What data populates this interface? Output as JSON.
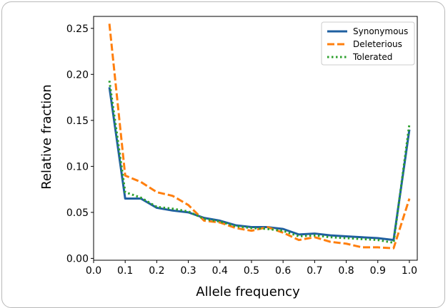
{
  "chart_data": {
    "type": "line",
    "title": "",
    "xlabel": "Allele frequency",
    "ylabel": "Relative fraction",
    "xlim": [
      0.0,
      1.025
    ],
    "ylim": [
      -0.002,
      0.263
    ],
    "xticks": [
      "0.0",
      "0.1",
      "0.2",
      "0.3",
      "0.4",
      "0.5",
      "0.6",
      "0.7",
      "0.8",
      "0.9",
      "1.0"
    ],
    "yticks": [
      "0.00",
      "0.05",
      "0.10",
      "0.15",
      "0.20",
      "0.25"
    ],
    "grid": false,
    "legend_position": "top-right",
    "x": [
      0.05,
      0.1,
      0.15,
      0.2,
      0.25,
      0.3,
      0.35,
      0.4,
      0.45,
      0.5,
      0.55,
      0.6,
      0.65,
      0.7,
      0.75,
      0.8,
      0.85,
      0.9,
      0.95,
      1.0
    ],
    "series": [
      {
        "name": "Synonymous",
        "color": "#1f5fa0",
        "style": "solid",
        "values": [
          0.186,
          0.065,
          0.065,
          0.055,
          0.052,
          0.05,
          0.044,
          0.041,
          0.036,
          0.034,
          0.034,
          0.032,
          0.026,
          0.027,
          0.025,
          0.024,
          0.023,
          0.022,
          0.02,
          0.14
        ]
      },
      {
        "name": "Deleterious",
        "color": "#ff7f0e",
        "style": "dashed",
        "values": [
          0.255,
          0.09,
          0.083,
          0.072,
          0.068,
          0.058,
          0.041,
          0.039,
          0.033,
          0.03,
          0.034,
          0.028,
          0.02,
          0.023,
          0.018,
          0.016,
          0.012,
          0.012,
          0.011,
          0.065
        ]
      },
      {
        "name": "Tolerated",
        "color": "#2ca02c",
        "style": "dotted",
        "values": [
          0.193,
          0.072,
          0.066,
          0.056,
          0.054,
          0.051,
          0.043,
          0.04,
          0.035,
          0.033,
          0.032,
          0.03,
          0.024,
          0.025,
          0.023,
          0.022,
          0.021,
          0.02,
          0.017,
          0.146
        ]
      }
    ]
  }
}
